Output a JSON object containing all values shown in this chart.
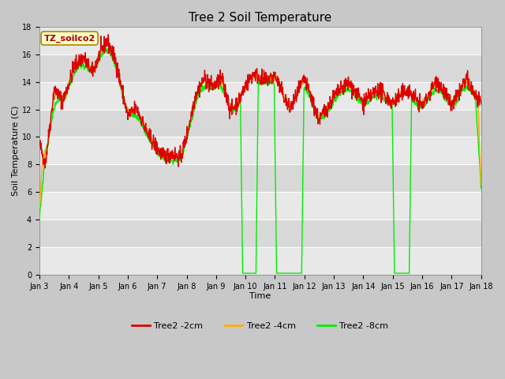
{
  "title": "Tree 2 Soil Temperature",
  "xlabel": "Time",
  "ylabel": "Soil Temperature (C)",
  "ylim": [
    0,
    18
  ],
  "colors": {
    "2cm": "#dd0000",
    "4cm": "#ffaa00",
    "8cm": "#00ee00"
  },
  "legend_labels": [
    "Tree2 -2cm",
    "Tree2 -4cm",
    "Tree2 -8cm"
  ],
  "annotation_text": "TZ_soilco2",
  "annotation_color": "#aa0000",
  "annotation_bg": "#ffffcc",
  "annotation_border": "#aa8800",
  "fig_bg": "#c8c8c8",
  "plot_bg_light": "#e8e8e8",
  "plot_bg_dark": "#d8d8d8",
  "grid_color": "#ffffff",
  "linewidth": 1.0,
  "title_fontsize": 11,
  "axis_fontsize": 8,
  "tick_fontsize": 7,
  "legend_fontsize": 8
}
